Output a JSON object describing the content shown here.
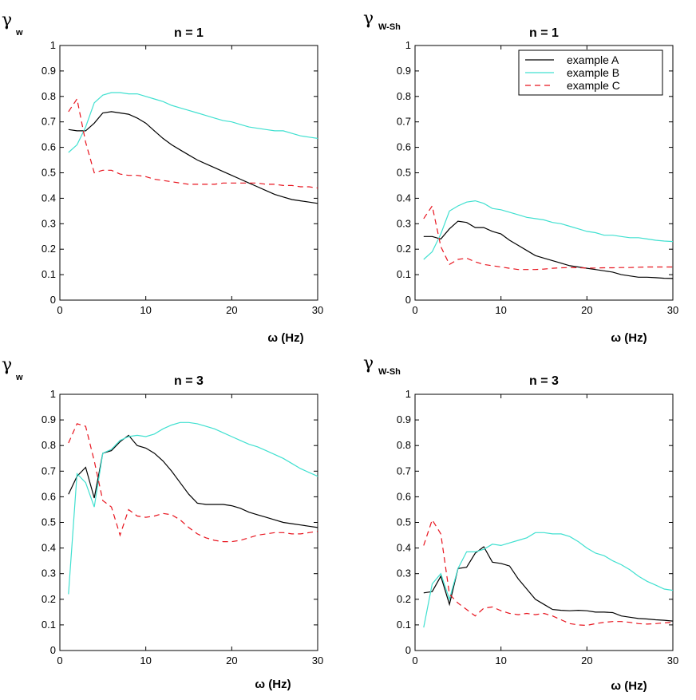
{
  "chart_data": [
    {
      "type": "line",
      "title": "n = 1",
      "ylabel_symbol": "γ",
      "ylabel_sub": "w",
      "xlabel": "ω (Hz)",
      "xlim": [
        0,
        30
      ],
      "ylim": [
        0,
        1
      ],
      "xticks": [
        "0",
        "10",
        "20",
        "30"
      ],
      "yticks": [
        "0",
        "0.1",
        "0.2",
        "0.3",
        "0.4",
        "0.5",
        "0.6",
        "0.7",
        "0.8",
        "0.9",
        "1"
      ],
      "legend": false,
      "series": [
        {
          "name": "example A",
          "color": "#000000",
          "dash": "solid",
          "x": [
            1,
            2,
            3,
            4,
            5,
            6,
            7,
            8,
            9,
            10,
            11,
            12,
            13,
            14,
            15,
            16,
            17,
            18,
            19,
            20,
            21,
            22,
            23,
            24,
            25,
            26,
            27,
            28,
            29,
            30
          ],
          "y": [
            0.67,
            0.665,
            0.665,
            0.695,
            0.735,
            0.74,
            0.735,
            0.73,
            0.715,
            0.695,
            0.665,
            0.635,
            0.61,
            0.59,
            0.57,
            0.55,
            0.535,
            0.52,
            0.505,
            0.49,
            0.475,
            0.46,
            0.445,
            0.43,
            0.415,
            0.405,
            0.395,
            0.39,
            0.385,
            0.38
          ]
        },
        {
          "name": "example B",
          "color": "#40e0d0",
          "dash": "solid",
          "x": [
            1,
            2,
            3,
            4,
            5,
            6,
            7,
            8,
            9,
            10,
            11,
            12,
            13,
            14,
            15,
            16,
            17,
            18,
            19,
            20,
            21,
            22,
            23,
            24,
            25,
            26,
            27,
            28,
            29,
            30
          ],
          "y": [
            0.58,
            0.61,
            0.68,
            0.775,
            0.805,
            0.815,
            0.815,
            0.81,
            0.81,
            0.8,
            0.79,
            0.78,
            0.765,
            0.755,
            0.745,
            0.735,
            0.725,
            0.715,
            0.705,
            0.7,
            0.69,
            0.68,
            0.675,
            0.67,
            0.665,
            0.665,
            0.655,
            0.645,
            0.64,
            0.635
          ]
        },
        {
          "name": "example C",
          "color": "#e8141e",
          "dash": "dashed",
          "x": [
            1,
            2,
            3,
            4,
            5,
            6,
            7,
            8,
            9,
            10,
            11,
            12,
            13,
            14,
            15,
            16,
            17,
            18,
            19,
            20,
            21,
            22,
            23,
            24,
            25,
            26,
            27,
            28,
            29,
            30
          ],
          "y": [
            0.74,
            0.79,
            0.62,
            0.5,
            0.51,
            0.51,
            0.495,
            0.49,
            0.49,
            0.485,
            0.475,
            0.47,
            0.465,
            0.46,
            0.455,
            0.455,
            0.455,
            0.455,
            0.46,
            0.46,
            0.46,
            0.46,
            0.46,
            0.455,
            0.455,
            0.45,
            0.45,
            0.445,
            0.445,
            0.44
          ]
        }
      ]
    },
    {
      "type": "line",
      "title": "n = 1",
      "ylabel_symbol": "γ",
      "ylabel_sub": "W-Sh",
      "xlabel": "ω (Hz)",
      "xlim": [
        0,
        30
      ],
      "ylim": [
        0,
        1
      ],
      "xticks": [
        "0",
        "10",
        "20",
        "30"
      ],
      "yticks": [
        "0",
        "0.1",
        "0.2",
        "0.3",
        "0.4",
        "0.5",
        "0.6",
        "0.7",
        "0.8",
        "0.9",
        "1"
      ],
      "legend": true,
      "legend_position": "top-right",
      "series": [
        {
          "name": "example A",
          "color": "#000000",
          "dash": "solid",
          "x": [
            1,
            2,
            3,
            4,
            5,
            6,
            7,
            8,
            9,
            10,
            11,
            12,
            13,
            14,
            15,
            16,
            17,
            18,
            19,
            20,
            21,
            22,
            23,
            24,
            25,
            26,
            27,
            28,
            29,
            30
          ],
          "y": [
            0.25,
            0.25,
            0.24,
            0.28,
            0.31,
            0.305,
            0.285,
            0.285,
            0.27,
            0.26,
            0.235,
            0.215,
            0.195,
            0.175,
            0.165,
            0.155,
            0.145,
            0.135,
            0.13,
            0.125,
            0.12,
            0.115,
            0.11,
            0.1,
            0.095,
            0.09,
            0.09,
            0.088,
            0.086,
            0.085
          ]
        },
        {
          "name": "example B",
          "color": "#40e0d0",
          "dash": "solid",
          "x": [
            1,
            2,
            3,
            4,
            5,
            6,
            7,
            8,
            9,
            10,
            11,
            12,
            13,
            14,
            15,
            16,
            17,
            18,
            19,
            20,
            21,
            22,
            23,
            24,
            25,
            26,
            27,
            28,
            29,
            30
          ],
          "y": [
            0.16,
            0.19,
            0.26,
            0.35,
            0.37,
            0.385,
            0.39,
            0.38,
            0.36,
            0.355,
            0.345,
            0.335,
            0.325,
            0.32,
            0.315,
            0.305,
            0.3,
            0.29,
            0.28,
            0.27,
            0.265,
            0.255,
            0.255,
            0.25,
            0.245,
            0.245,
            0.24,
            0.235,
            0.232,
            0.23
          ]
        },
        {
          "name": "example C",
          "color": "#e8141e",
          "dash": "dashed",
          "x": [
            1,
            2,
            3,
            4,
            5,
            6,
            7,
            8,
            9,
            10,
            11,
            12,
            13,
            14,
            15,
            16,
            17,
            18,
            19,
            20,
            21,
            22,
            23,
            24,
            25,
            26,
            27,
            28,
            29,
            30
          ],
          "y": [
            0.32,
            0.37,
            0.21,
            0.14,
            0.16,
            0.165,
            0.15,
            0.14,
            0.135,
            0.13,
            0.125,
            0.12,
            0.12,
            0.12,
            0.122,
            0.125,
            0.127,
            0.128,
            0.127,
            0.126,
            0.126,
            0.127,
            0.127,
            0.128,
            0.128,
            0.129,
            0.13,
            0.13,
            0.13,
            0.13
          ]
        }
      ]
    },
    {
      "type": "line",
      "title": "n = 3",
      "ylabel_symbol": "γ",
      "ylabel_sub": "w",
      "xlabel": "ω (Hz)",
      "xlim": [
        0,
        30
      ],
      "ylim": [
        0,
        1
      ],
      "xticks": [
        "0",
        "10",
        "20",
        "30"
      ],
      "yticks": [
        "0",
        "0.1",
        "0.2",
        "0.3",
        "0.4",
        "0.5",
        "0.6",
        "0.7",
        "0.8",
        "0.9",
        "1"
      ],
      "legend": false,
      "series": [
        {
          "name": "example A",
          "color": "#000000",
          "dash": "solid",
          "x": [
            1,
            2,
            3,
            4,
            5,
            6,
            7,
            8,
            9,
            10,
            11,
            12,
            13,
            14,
            15,
            16,
            17,
            18,
            19,
            20,
            21,
            22,
            23,
            24,
            25,
            26,
            27,
            28,
            29,
            30
          ],
          "y": [
            0.61,
            0.68,
            0.715,
            0.595,
            0.77,
            0.78,
            0.815,
            0.84,
            0.8,
            0.79,
            0.77,
            0.74,
            0.7,
            0.655,
            0.61,
            0.575,
            0.57,
            0.57,
            0.57,
            0.565,
            0.555,
            0.54,
            0.53,
            0.52,
            0.51,
            0.5,
            0.495,
            0.49,
            0.485,
            0.48
          ]
        },
        {
          "name": "example B",
          "color": "#40e0d0",
          "dash": "solid",
          "x": [
            1,
            2,
            3,
            4,
            5,
            6,
            7,
            8,
            9,
            10,
            11,
            12,
            13,
            14,
            15,
            16,
            17,
            18,
            19,
            20,
            21,
            22,
            23,
            24,
            25,
            26,
            27,
            28,
            29,
            30
          ],
          "y": [
            0.22,
            0.69,
            0.655,
            0.56,
            0.77,
            0.785,
            0.82,
            0.835,
            0.84,
            0.835,
            0.845,
            0.865,
            0.88,
            0.89,
            0.89,
            0.885,
            0.875,
            0.865,
            0.85,
            0.835,
            0.82,
            0.805,
            0.795,
            0.78,
            0.765,
            0.75,
            0.73,
            0.71,
            0.695,
            0.68
          ]
        },
        {
          "name": "example C",
          "color": "#e8141e",
          "dash": "dashed",
          "x": [
            1,
            2,
            3,
            4,
            5,
            6,
            7,
            8,
            9,
            10,
            11,
            12,
            13,
            14,
            15,
            16,
            17,
            18,
            19,
            20,
            21,
            22,
            23,
            24,
            25,
            26,
            27,
            28,
            29,
            30
          ],
          "y": [
            0.81,
            0.885,
            0.875,
            0.74,
            0.585,
            0.56,
            0.45,
            0.55,
            0.525,
            0.52,
            0.525,
            0.535,
            0.53,
            0.51,
            0.48,
            0.455,
            0.44,
            0.43,
            0.425,
            0.425,
            0.43,
            0.44,
            0.45,
            0.455,
            0.46,
            0.46,
            0.455,
            0.455,
            0.46,
            0.465
          ]
        }
      ]
    },
    {
      "type": "line",
      "title": "n = 3",
      "ylabel_symbol": "γ",
      "ylabel_sub": "W-Sh",
      "xlabel": "ω (Hz)",
      "xlim": [
        0,
        30
      ],
      "ylim": [
        0,
        1
      ],
      "xticks": [
        "0",
        "10",
        "20",
        "30"
      ],
      "yticks": [
        "0",
        "0.1",
        "0.2",
        "0.3",
        "0.4",
        "0.5",
        "0.6",
        "0.7",
        "0.8",
        "0.9",
        "1"
      ],
      "legend": false,
      "series": [
        {
          "name": "example A",
          "color": "#000000",
          "dash": "solid",
          "x": [
            1,
            2,
            3,
            4,
            5,
            6,
            7,
            8,
            9,
            10,
            11,
            12,
            13,
            14,
            15,
            16,
            17,
            18,
            19,
            20,
            21,
            22,
            23,
            24,
            25,
            26,
            27,
            28,
            29,
            30
          ],
          "y": [
            0.225,
            0.23,
            0.29,
            0.18,
            0.32,
            0.325,
            0.38,
            0.405,
            0.345,
            0.34,
            0.33,
            0.28,
            0.24,
            0.2,
            0.18,
            0.16,
            0.157,
            0.155,
            0.157,
            0.155,
            0.15,
            0.15,
            0.148,
            0.135,
            0.13,
            0.125,
            0.123,
            0.12,
            0.118,
            0.115
          ]
        },
        {
          "name": "example B",
          "color": "#40e0d0",
          "dash": "solid",
          "x": [
            1,
            2,
            3,
            4,
            5,
            6,
            7,
            8,
            9,
            10,
            11,
            12,
            13,
            14,
            15,
            16,
            17,
            18,
            19,
            20,
            21,
            22,
            23,
            24,
            25,
            26,
            27,
            28,
            29,
            30
          ],
          "y": [
            0.09,
            0.26,
            0.3,
            0.2,
            0.32,
            0.385,
            0.385,
            0.395,
            0.415,
            0.41,
            0.42,
            0.43,
            0.44,
            0.46,
            0.46,
            0.455,
            0.455,
            0.445,
            0.425,
            0.4,
            0.38,
            0.37,
            0.35,
            0.335,
            0.315,
            0.29,
            0.27,
            0.255,
            0.24,
            0.235
          ]
        },
        {
          "name": "example C",
          "color": "#e8141e",
          "dash": "dashed",
          "x": [
            1,
            2,
            3,
            4,
            5,
            6,
            7,
            8,
            9,
            10,
            11,
            12,
            13,
            14,
            15,
            16,
            17,
            18,
            19,
            20,
            21,
            22,
            23,
            24,
            25,
            26,
            27,
            28,
            29,
            30
          ],
          "y": [
            0.41,
            0.51,
            0.455,
            0.22,
            0.185,
            0.16,
            0.135,
            0.165,
            0.17,
            0.155,
            0.145,
            0.14,
            0.145,
            0.14,
            0.145,
            0.135,
            0.12,
            0.105,
            0.1,
            0.098,
            0.105,
            0.11,
            0.113,
            0.113,
            0.11,
            0.105,
            0.103,
            0.105,
            0.108,
            0.11
          ]
        }
      ]
    }
  ]
}
